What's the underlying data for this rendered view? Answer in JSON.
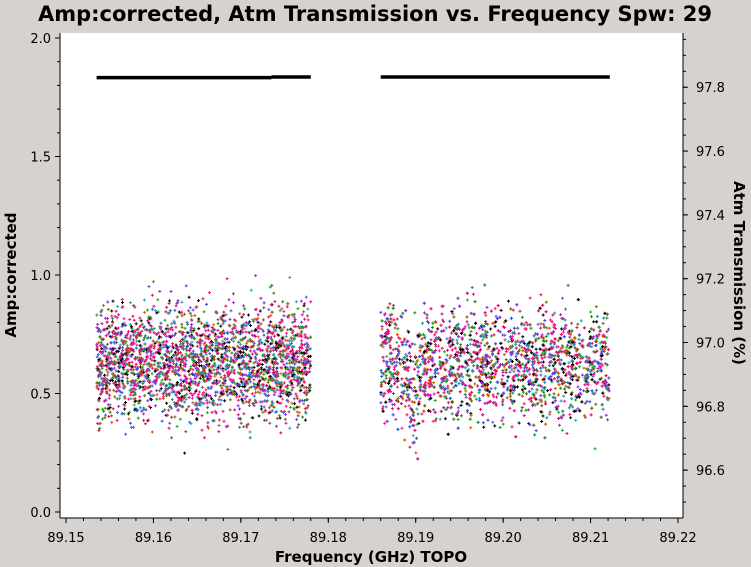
{
  "chart_data": {
    "type": "scatter",
    "title": "Amp:corrected, Atm Transmission vs. Frequency Spw: 29",
    "xlabel": "Frequency (GHz) TOPO",
    "ylabel": "Amp:corrected",
    "y2label": "Atm Transmission (%)",
    "xlim": [
      89.15,
      89.22
    ],
    "ylim": [
      0.0,
      2.0
    ],
    "y2lim": [
      96.45,
      97.97
    ],
    "x_ticks": [
      "89.15",
      "89.16",
      "89.17",
      "89.18",
      "89.19",
      "89.20",
      "89.21",
      "89.22"
    ],
    "y_ticks": [
      "0.0",
      "0.5",
      "1.0",
      "1.5",
      "2.0"
    ],
    "y2_ticks": [
      "96.6",
      "96.8",
      "97.0",
      "97.2",
      "97.4",
      "97.6",
      "97.8"
    ],
    "grid": false,
    "series": [
      {
        "description": "amplitude scatter",
        "segments": [
          {
            "x_range": [
              89.1535,
              89.178
            ],
            "center": 0.63,
            "spread_sd": 0.12,
            "min": 0.2,
            "max": 1.05
          },
          {
            "x_range": [
              89.186,
              89.2122
            ],
            "center": 0.63,
            "spread_sd": 0.12,
            "min": 0.17,
            "max": 1.12
          }
        ],
        "dip": {
          "x": 89.1898,
          "amp_min": 0.23
        },
        "colors": [
          "#e0126e",
          "#e0126e",
          "#e0126e",
          "#000000",
          "#000000",
          "#2a55e0",
          "#1ea81e",
          "#8a2be2",
          "#d45f00",
          "#2aa5a5",
          "#7a6a00",
          "#c71585",
          "#4169e1",
          "#228b22",
          "#ff1493"
        ]
      },
      {
        "description": "atmospheric transmission",
        "segments": [
          {
            "x": [
              89.1535,
              89.1735
            ],
            "y": 97.83
          },
          {
            "x": [
              89.1735,
              89.178
            ],
            "y": 97.832
          },
          {
            "x": [
              89.186,
              89.2122
            ],
            "y": 97.832
          }
        ],
        "color": "#000000"
      }
    ]
  }
}
